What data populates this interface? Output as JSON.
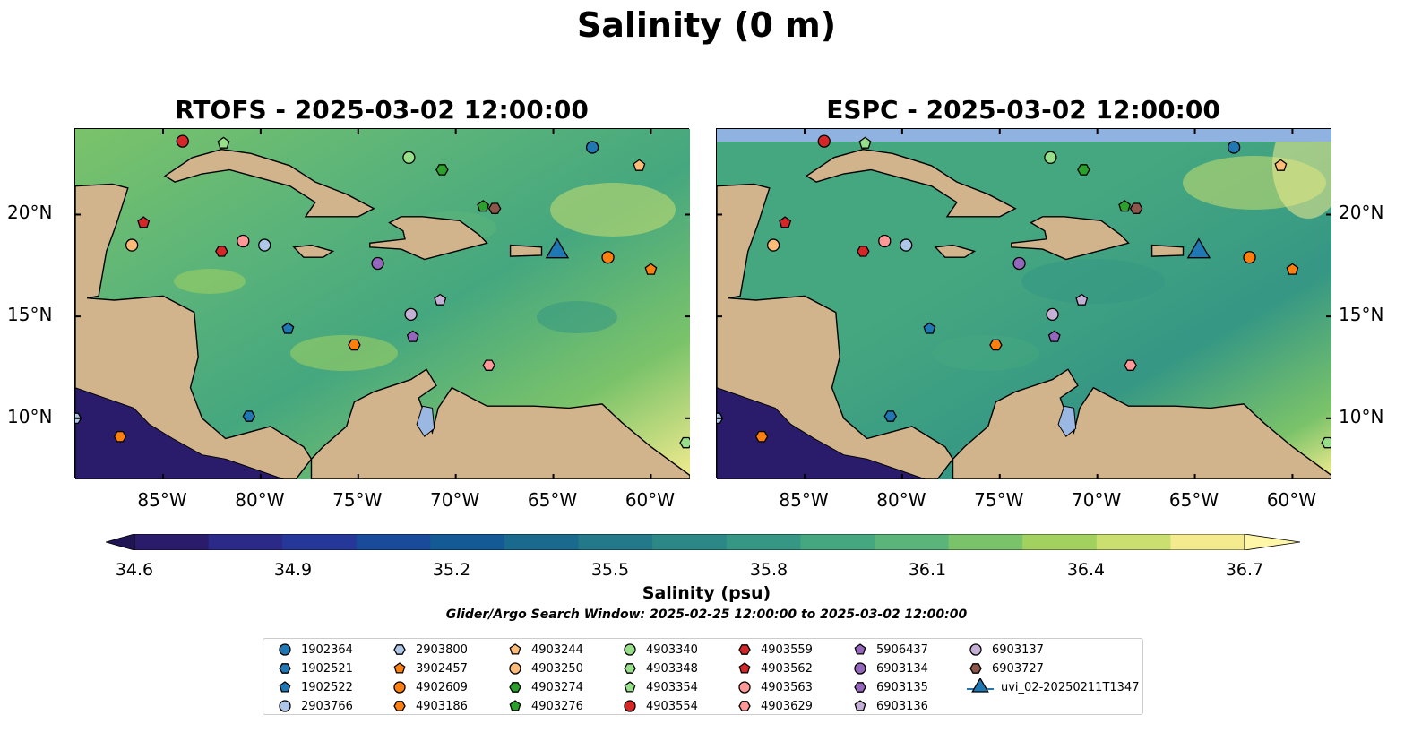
{
  "title": "Salinity (0 m)",
  "panels": [
    {
      "title": "RTOFS - 2025-03-02 12:00:00",
      "variant": "rtofs"
    },
    {
      "title": "ESPC - 2025-03-02 12:00:00",
      "variant": "espc"
    }
  ],
  "axes": {
    "lon_ticks": [
      "85°W",
      "80°W",
      "75°W",
      "70°W",
      "65°W",
      "60°W"
    ],
    "lat_ticks": [
      "20°N",
      "15°N",
      "10°N"
    ]
  },
  "colorbar": {
    "label": "Salinity (psu)",
    "ticks": [
      "34.6",
      "34.9",
      "35.2",
      "35.5",
      "35.8",
      "36.1",
      "36.4",
      "36.7"
    ],
    "range": [
      34.6,
      36.7
    ],
    "colors": [
      "#2a1b6b",
      "#2b2a88",
      "#25389a",
      "#1a4a9a",
      "#145a95",
      "#1a6a8e",
      "#237989",
      "#2c8886",
      "#359784",
      "#45a77f",
      "#5bb479",
      "#7bc36a",
      "#a2d160",
      "#cadf6f",
      "#f3eb8e"
    ]
  },
  "search_window": "Glider/Argo Search Window: 2025-02-25 12:00:00 to 2025-03-02 12:00:00",
  "legend": [
    {
      "label": "1902364",
      "color": "#1f77b4",
      "shape": "circle"
    },
    {
      "label": "1902521",
      "color": "#1f77b4",
      "shape": "hexagon"
    },
    {
      "label": "1902522",
      "color": "#1f77b4",
      "shape": "pentagon"
    },
    {
      "label": "2903766",
      "color": "#aec7e8",
      "shape": "circle"
    },
    {
      "label": "2903800",
      "color": "#aec7e8",
      "shape": "hexagon"
    },
    {
      "label": "3902457",
      "color": "#ff7f0e",
      "shape": "pentagon"
    },
    {
      "label": "4902609",
      "color": "#ff7f0e",
      "shape": "circle"
    },
    {
      "label": "4903186",
      "color": "#ff7f0e",
      "shape": "hexagon"
    },
    {
      "label": "4903244",
      "color": "#ffbb78",
      "shape": "pentagon"
    },
    {
      "label": "4903250",
      "color": "#ffbb78",
      "shape": "circle"
    },
    {
      "label": "4903274",
      "color": "#2ca02c",
      "shape": "hexagon"
    },
    {
      "label": "4903276",
      "color": "#2ca02c",
      "shape": "pentagon"
    },
    {
      "label": "4903340",
      "color": "#98df8a",
      "shape": "circle"
    },
    {
      "label": "4903348",
      "color": "#98df8a",
      "shape": "hexagon"
    },
    {
      "label": "4903354",
      "color": "#98df8a",
      "shape": "pentagon"
    },
    {
      "label": "4903554",
      "color": "#d62728",
      "shape": "circle"
    },
    {
      "label": "4903559",
      "color": "#d62728",
      "shape": "hexagon"
    },
    {
      "label": "4903562",
      "color": "#d62728",
      "shape": "pentagon"
    },
    {
      "label": "4903563",
      "color": "#ff9896",
      "shape": "circle"
    },
    {
      "label": "4903629",
      "color": "#ff9896",
      "shape": "hexagon"
    },
    {
      "label": "5906437",
      "color": "#9467bd",
      "shape": "pentagon"
    },
    {
      "label": "6903134",
      "color": "#9467bd",
      "shape": "circle"
    },
    {
      "label": "6903135",
      "color": "#9467bd",
      "shape": "hexagon"
    },
    {
      "label": "6903136",
      "color": "#c5b0d5",
      "shape": "pentagon"
    },
    {
      "label": "6903137",
      "color": "#c5b0d5",
      "shape": "circle"
    },
    {
      "label": "6903727",
      "color": "#8c564b",
      "shape": "hexagon"
    },
    {
      "label": "uvi_02-20250211T1347",
      "color": "#1f77b4",
      "shape": "triangle"
    }
  ],
  "chart_data": {
    "type": "scatter",
    "title": "Salinity (0 m)",
    "xlim": [
      -89.5,
      -58.0
    ],
    "ylim": [
      7.0,
      24.2
    ],
    "colorbar_range": [
      34.6,
      36.7
    ],
    "series": [
      {
        "name": "4903554",
        "x": [
          -84.0
        ],
        "y": [
          23.6
        ]
      },
      {
        "name": "4903354",
        "x": [
          -81.9
        ],
        "y": [
          23.5
        ]
      },
      {
        "name": "1902364",
        "x": [
          -63.0
        ],
        "y": [
          23.3
        ]
      },
      {
        "name": "4903340",
        "x": [
          -72.4
        ],
        "y": [
          22.8
        ]
      },
      {
        "name": "4903274",
        "x": [
          -70.7
        ],
        "y": [
          22.2
        ]
      },
      {
        "name": "4903244",
        "x": [
          -60.6
        ],
        "y": [
          22.4
        ]
      },
      {
        "name": "4903276",
        "x": [
          -68.6
        ],
        "y": [
          20.4
        ]
      },
      {
        "name": "6903727",
        "x": [
          -68.0
        ],
        "y": [
          20.3
        ]
      },
      {
        "name": "4903562",
        "x": [
          -86.0
        ],
        "y": [
          19.6
        ]
      },
      {
        "name": "4903250",
        "x": [
          -86.6
        ],
        "y": [
          18.5
        ]
      },
      {
        "name": "4903559",
        "x": [
          -82.0
        ],
        "y": [
          18.2
        ]
      },
      {
        "name": "4903563",
        "x": [
          -80.9
        ],
        "y": [
          18.7
        ]
      },
      {
        "name": "2903766",
        "x": [
          -79.8
        ],
        "y": [
          18.5
        ]
      },
      {
        "name": "6903134",
        "x": [
          -74.0
        ],
        "y": [
          17.6
        ]
      },
      {
        "name": "4902609",
        "x": [
          -62.2
        ],
        "y": [
          17.9
        ]
      },
      {
        "name": "3902457",
        "x": [
          -60.0
        ],
        "y": [
          17.3
        ]
      },
      {
        "name": "6903136",
        "x": [
          -70.8
        ],
        "y": [
          15.8
        ]
      },
      {
        "name": "6903137",
        "x": [
          -72.3
        ],
        "y": [
          15.1
        ]
      },
      {
        "name": "1902522",
        "x": [
          -78.6
        ],
        "y": [
          14.4
        ]
      },
      {
        "name": "5906437",
        "x": [
          -72.2
        ],
        "y": [
          14.0
        ]
      },
      {
        "name": "4903186",
        "x": [
          -75.2
        ],
        "y": [
          13.6
        ]
      },
      {
        "name": "4903629",
        "x": [
          -68.3
        ],
        "y": [
          12.6
        ]
      },
      {
        "name": "1902521",
        "x": [
          -80.6
        ],
        "y": [
          10.1
        ]
      },
      {
        "name": "4903186",
        "x": [
          -87.2
        ],
        "y": [
          9.1
        ]
      },
      {
        "name": "2903800",
        "x": [
          -89.5
        ],
        "y": [
          10.0
        ]
      },
      {
        "name": "4903348",
        "x": [
          -58.2
        ],
        "y": [
          8.8
        ]
      },
      {
        "name": "uvi_02-20250211T1347",
        "x": [
          -64.8
        ],
        "y": [
          18.1
        ]
      }
    ]
  }
}
